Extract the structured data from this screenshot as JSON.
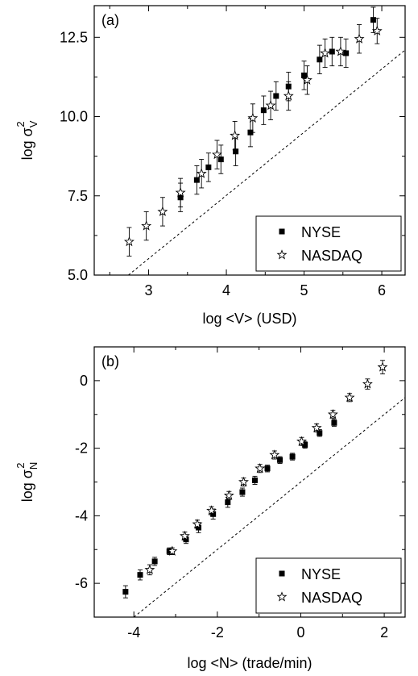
{
  "chart_data": [
    {
      "type": "scatter",
      "panel_label": "(a)",
      "xlabel": "log <V> (USD)",
      "ylabel_main": "log σ",
      "ylabel_sup": "2",
      "ylabel_sub": "V",
      "xlim": [
        2.3,
        6.3
      ],
      "ylim": [
        5.0,
        13.5
      ],
      "xticks": [
        3,
        4,
        5,
        6
      ],
      "xtick_labels": [
        "3",
        "4",
        "5",
        "6"
      ],
      "yticks": [
        5.0,
        7.5,
        10.0,
        12.5
      ],
      "ytick_labels": [
        "5.0",
        "7.5",
        "10.0",
        "12.5"
      ],
      "legend_position": "bottom-right",
      "reference_line": {
        "style": "dashed",
        "x": [
          2.74,
          6.3
        ],
        "y": [
          5.0,
          12.1
        ]
      },
      "series": [
        {
          "name": "NYSE",
          "marker": "square",
          "x": [
            3.41,
            3.62,
            3.77,
            3.93,
            4.12,
            4.31,
            4.48,
            4.64,
            4.8,
            5.0,
            5.2,
            5.36,
            5.54,
            5.89
          ],
          "y": [
            7.45,
            8.0,
            8.4,
            8.65,
            8.9,
            9.5,
            10.2,
            10.65,
            10.95,
            11.3,
            11.8,
            12.05,
            12.0,
            13.05
          ],
          "err": [
            0.45,
            0.45,
            0.45,
            0.45,
            0.45,
            0.45,
            0.45,
            0.45,
            0.45,
            0.45,
            0.45,
            0.45,
            0.45,
            0.4
          ]
        },
        {
          "name": "NASDAQ",
          "marker": "star",
          "x": [
            2.75,
            2.97,
            3.18,
            3.41,
            3.68,
            3.88,
            4.11,
            4.34,
            4.57,
            4.8,
            5.04,
            5.27,
            5.47,
            5.71,
            5.94
          ],
          "y": [
            6.05,
            6.55,
            7.0,
            7.6,
            8.2,
            8.8,
            9.4,
            9.95,
            10.35,
            10.65,
            11.15,
            12.0,
            12.05,
            12.45,
            12.7
          ],
          "err": [
            0.45,
            0.45,
            0.45,
            0.45,
            0.45,
            0.45,
            0.45,
            0.45,
            0.45,
            0.45,
            0.45,
            0.45,
            0.45,
            0.45,
            0.4
          ]
        }
      ]
    },
    {
      "type": "scatter",
      "panel_label": "(b)",
      "xlabel": "log <N> (trade/min)",
      "ylabel_main": "log σ",
      "ylabel_sup": "2",
      "ylabel_sub": "N",
      "xlim": [
        -4.95,
        2.5
      ],
      "ylim": [
        -7.0,
        1.0
      ],
      "xticks": [
        -4,
        -2,
        0,
        2
      ],
      "xtick_labels": [
        "-4",
        "-2",
        "0",
        "2"
      ],
      "yticks": [
        -6,
        -4,
        -2,
        0
      ],
      "ytick_labels": [
        "-6",
        "-4",
        "-2",
        "0"
      ],
      "legend_position": "bottom-right",
      "reference_line": {
        "style": "dashed",
        "x": [
          -4.0,
          2.5
        ],
        "y": [
          -7.0,
          -0.5
        ]
      },
      "series": [
        {
          "name": "NYSE",
          "marker": "square",
          "x": [
            -4.2,
            -3.85,
            -3.5,
            -3.15,
            -2.75,
            -2.45,
            -2.1,
            -1.75,
            -1.4,
            -1.1,
            -0.8,
            -0.5,
            -0.2,
            0.1,
            0.45,
            0.8
          ],
          "y": [
            -6.25,
            -5.75,
            -5.35,
            -5.05,
            -4.7,
            -4.35,
            -3.95,
            -3.6,
            -3.3,
            -2.95,
            -2.6,
            -2.35,
            -2.25,
            -1.9,
            -1.55,
            -1.25
          ],
          "err": [
            0.18,
            0.15,
            0.12,
            0.1,
            0.12,
            0.15,
            0.15,
            0.15,
            0.12,
            0.12,
            0.1,
            0.1,
            0.1,
            0.1,
            0.1,
            0.1
          ]
        },
        {
          "name": "NASDAQ",
          "marker": "star",
          "x": [
            -3.62,
            -3.08,
            -2.78,
            -2.48,
            -2.14,
            -1.72,
            -1.37,
            -0.98,
            -0.63,
            0.02,
            0.38,
            0.77,
            1.17,
            1.6,
            1.96
          ],
          "y": [
            -5.6,
            -5.05,
            -4.6,
            -4.25,
            -3.85,
            -3.4,
            -3.0,
            -2.6,
            -2.2,
            -1.8,
            -1.4,
            -1.0,
            -0.5,
            -0.1,
            0.4
          ],
          "err": [
            0.15,
            0.1,
            0.12,
            0.12,
            0.12,
            0.12,
            0.12,
            0.12,
            0.12,
            0.12,
            0.12,
            0.12,
            0.12,
            0.15,
            0.2
          ]
        }
      ]
    }
  ]
}
